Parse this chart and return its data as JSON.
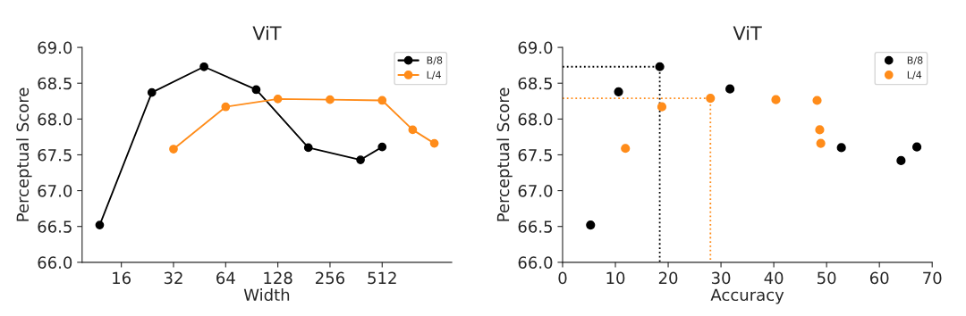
{
  "chart_data": [
    {
      "type": "line",
      "title": "ViT",
      "xlabel": "Width",
      "ylabel": "Perceptual Score",
      "log": "x",
      "xlim": [
        9.5,
        1290
      ],
      "xticks": [
        16,
        32,
        64,
        128,
        256,
        512
      ],
      "ylim": [
        66.0,
        69.0
      ],
      "yticks": [
        {
          "value": 66.0,
          "label": "66.0"
        },
        {
          "value": 66.5,
          "label": "66.5"
        },
        {
          "value": 67.0,
          "label": "67.0"
        },
        {
          "value": 67.5,
          "label": "67.5"
        },
        {
          "value": 68.0,
          "label": "68.0"
        },
        {
          "value": 68.5,
          "label": "68.5"
        },
        {
          "value": 69.0,
          "label": "69.0"
        }
      ],
      "grid": false,
      "legend": "top right",
      "marker": "circle",
      "line_style": "solid",
      "series": [
        {
          "name": "B/8",
          "color": "#000000",
          "x": [
            12,
            24,
            48,
            96,
            192,
            384,
            512
          ],
          "values": [
            66.52,
            68.37,
            68.73,
            68.41,
            67.6,
            67.43,
            67.61
          ]
        },
        {
          "name": "L/4",
          "color": "#ff8c1a",
          "x": [
            32,
            64,
            128,
            256,
            512,
            768,
            1024
          ],
          "values": [
            67.58,
            68.17,
            68.28,
            68.27,
            68.26,
            67.85,
            67.66
          ]
        }
      ]
    },
    {
      "type": "scatter",
      "title": "ViT",
      "xlabel": "Accuracy",
      "ylabel": "Perceptual Score",
      "xlim": [
        0,
        70
      ],
      "xticks": [
        0,
        10,
        20,
        30,
        40,
        50,
        60,
        70
      ],
      "ylim": [
        66.0,
        69.0
      ],
      "yticks": [
        {
          "value": 66.0,
          "label": "66.0"
        },
        {
          "value": 66.5,
          "label": "66.5"
        },
        {
          "value": 67.0,
          "label": "67.0"
        },
        {
          "value": 67.5,
          "label": "67.5"
        },
        {
          "value": 68.0,
          "label": "68.0"
        },
        {
          "value": 68.5,
          "label": "68.5"
        },
        {
          "value": 69.0,
          "label": "69.0"
        }
      ],
      "grid": false,
      "legend": "top right",
      "marker": "circle",
      "series": [
        {
          "name": "B/8",
          "color": "#000000",
          "x": [
            5.3,
            10.6,
            18.4,
            31.7,
            52.8,
            64.1,
            67.1
          ],
          "values": [
            66.52,
            68.38,
            68.73,
            68.42,
            67.6,
            67.42,
            67.61
          ]
        },
        {
          "name": "L/4",
          "color": "#ff8c1a",
          "x": [
            11.9,
            18.8,
            28.0,
            40.4,
            48.2,
            48.7,
            48.9
          ],
          "values": [
            67.59,
            68.17,
            68.29,
            68.27,
            68.26,
            67.85,
            67.66
          ]
        },
        {
          "type": "line",
          "color": "#000000",
          "line_style": "dotted",
          "marker": "none",
          "x": [
            0,
            18.4,
            18.4
          ],
          "values": [
            68.73,
            68.73,
            66.0
          ]
        },
        {
          "type": "line",
          "color": "#ff8c1a",
          "line_style": "dotted",
          "marker": "none",
          "x": [
            0,
            28.0,
            28.0
          ],
          "values": [
            68.29,
            68.29,
            66.0
          ]
        }
      ]
    }
  ]
}
